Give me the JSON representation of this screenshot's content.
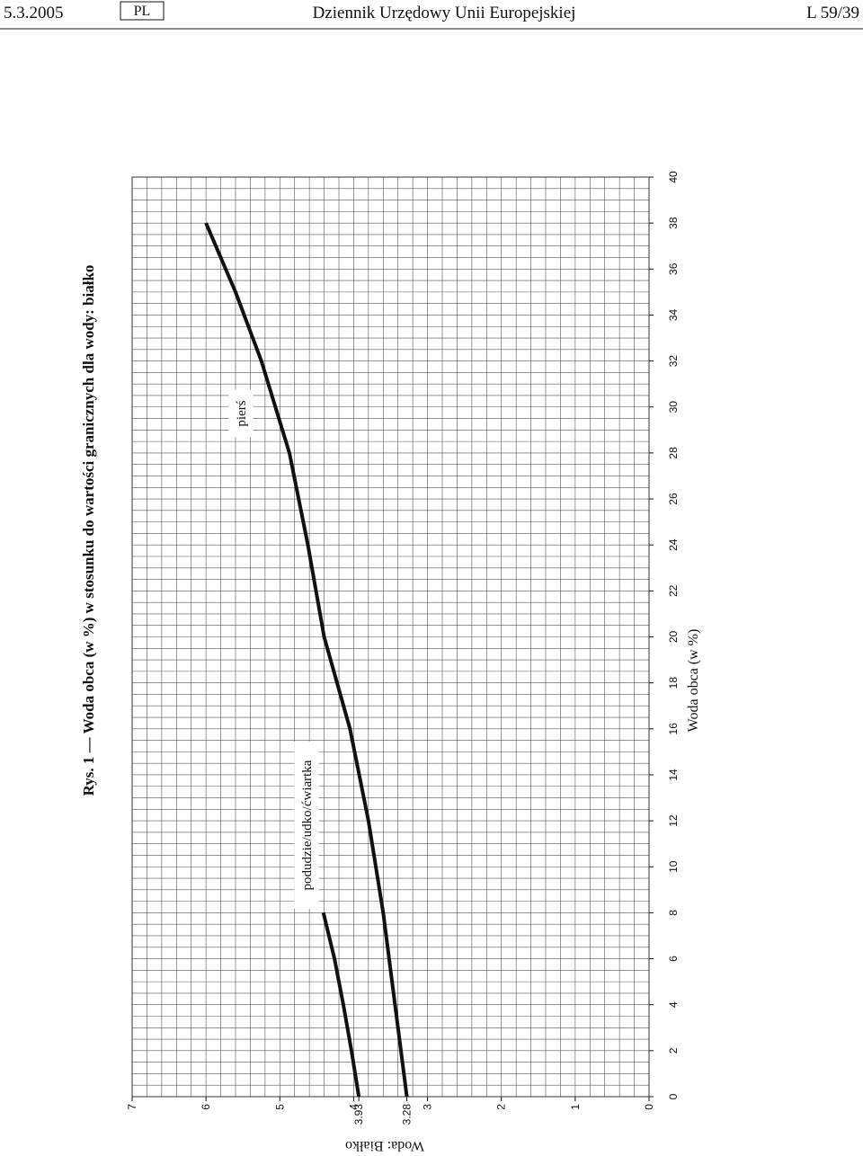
{
  "header": {
    "date": "5.3.2005",
    "lang": "PL",
    "journal": "Dziennik Urzędowy Unii Europejskiej",
    "page": "L 59/39"
  },
  "chart_data": {
    "type": "line",
    "title": "Rys. 1 — Woda obca (w %) w stosunku do wartości granicznych dla wody: białko",
    "x_label": "Woda obca (w %)",
    "y_label": "Woda: Białko",
    "xlim": [
      0,
      40
    ],
    "xticks": [
      0,
      2,
      4,
      6,
      8,
      10,
      12,
      14,
      16,
      18,
      20,
      22,
      24,
      26,
      28,
      30,
      32,
      34,
      36,
      38,
      40
    ],
    "ylim": [
      0,
      7
    ],
    "yticks": [
      0,
      1,
      2,
      3,
      3.28,
      3.93,
      4,
      5,
      6,
      7
    ],
    "grid": true,
    "x_minor_step": 0.5,
    "y_minor_step": 0.2,
    "series": [
      {
        "name": "pierś",
        "color": "#111111",
        "x": [
          0,
          4,
          8,
          12,
          16,
          20,
          24,
          28,
          32,
          35,
          38
        ],
        "values": [
          3.28,
          3.44,
          3.6,
          3.8,
          4.05,
          4.4,
          4.62,
          4.87,
          5.25,
          5.6,
          6.0
        ]
      },
      {
        "name": "podudzie/udko/ćwiartka",
        "color": "#111111",
        "x": [
          0,
          2,
          4,
          6,
          8
        ],
        "values": [
          3.93,
          4.03,
          4.14,
          4.26,
          4.41
        ]
      }
    ]
  }
}
